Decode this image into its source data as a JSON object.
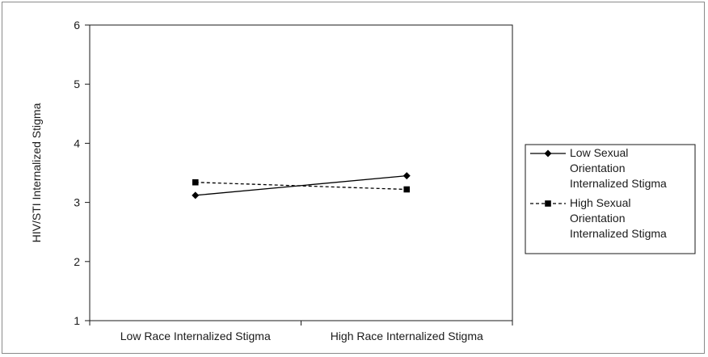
{
  "chart_data": {
    "type": "line",
    "title": "",
    "xlabel": "",
    "ylabel": "HIV/STI Internalized Stigma",
    "categories": [
      "Low Race Internalized Stigma",
      "High Race Internalized Stigma"
    ],
    "ylim": [
      1,
      6
    ],
    "yticks": [
      1,
      2,
      3,
      4,
      5,
      6
    ],
    "grid": false,
    "legend_position": "right",
    "series": [
      {
        "name": "Low Sexual Orientation Internalized Stigma",
        "legend_lines": [
          "Low Sexual",
          "Orientation",
          "Internalized Stigma"
        ],
        "values": [
          3.12,
          3.45
        ],
        "marker": "diamond",
        "line_style": "solid",
        "color": "#000000"
      },
      {
        "name": "High Sexual Orientation Internalized Stigma",
        "legend_lines": [
          "High Sexual",
          "Orientation",
          "Internalized Stigma"
        ],
        "values": [
          3.34,
          3.22
        ],
        "marker": "square",
        "line_style": "dashed",
        "color": "#000000"
      }
    ]
  }
}
